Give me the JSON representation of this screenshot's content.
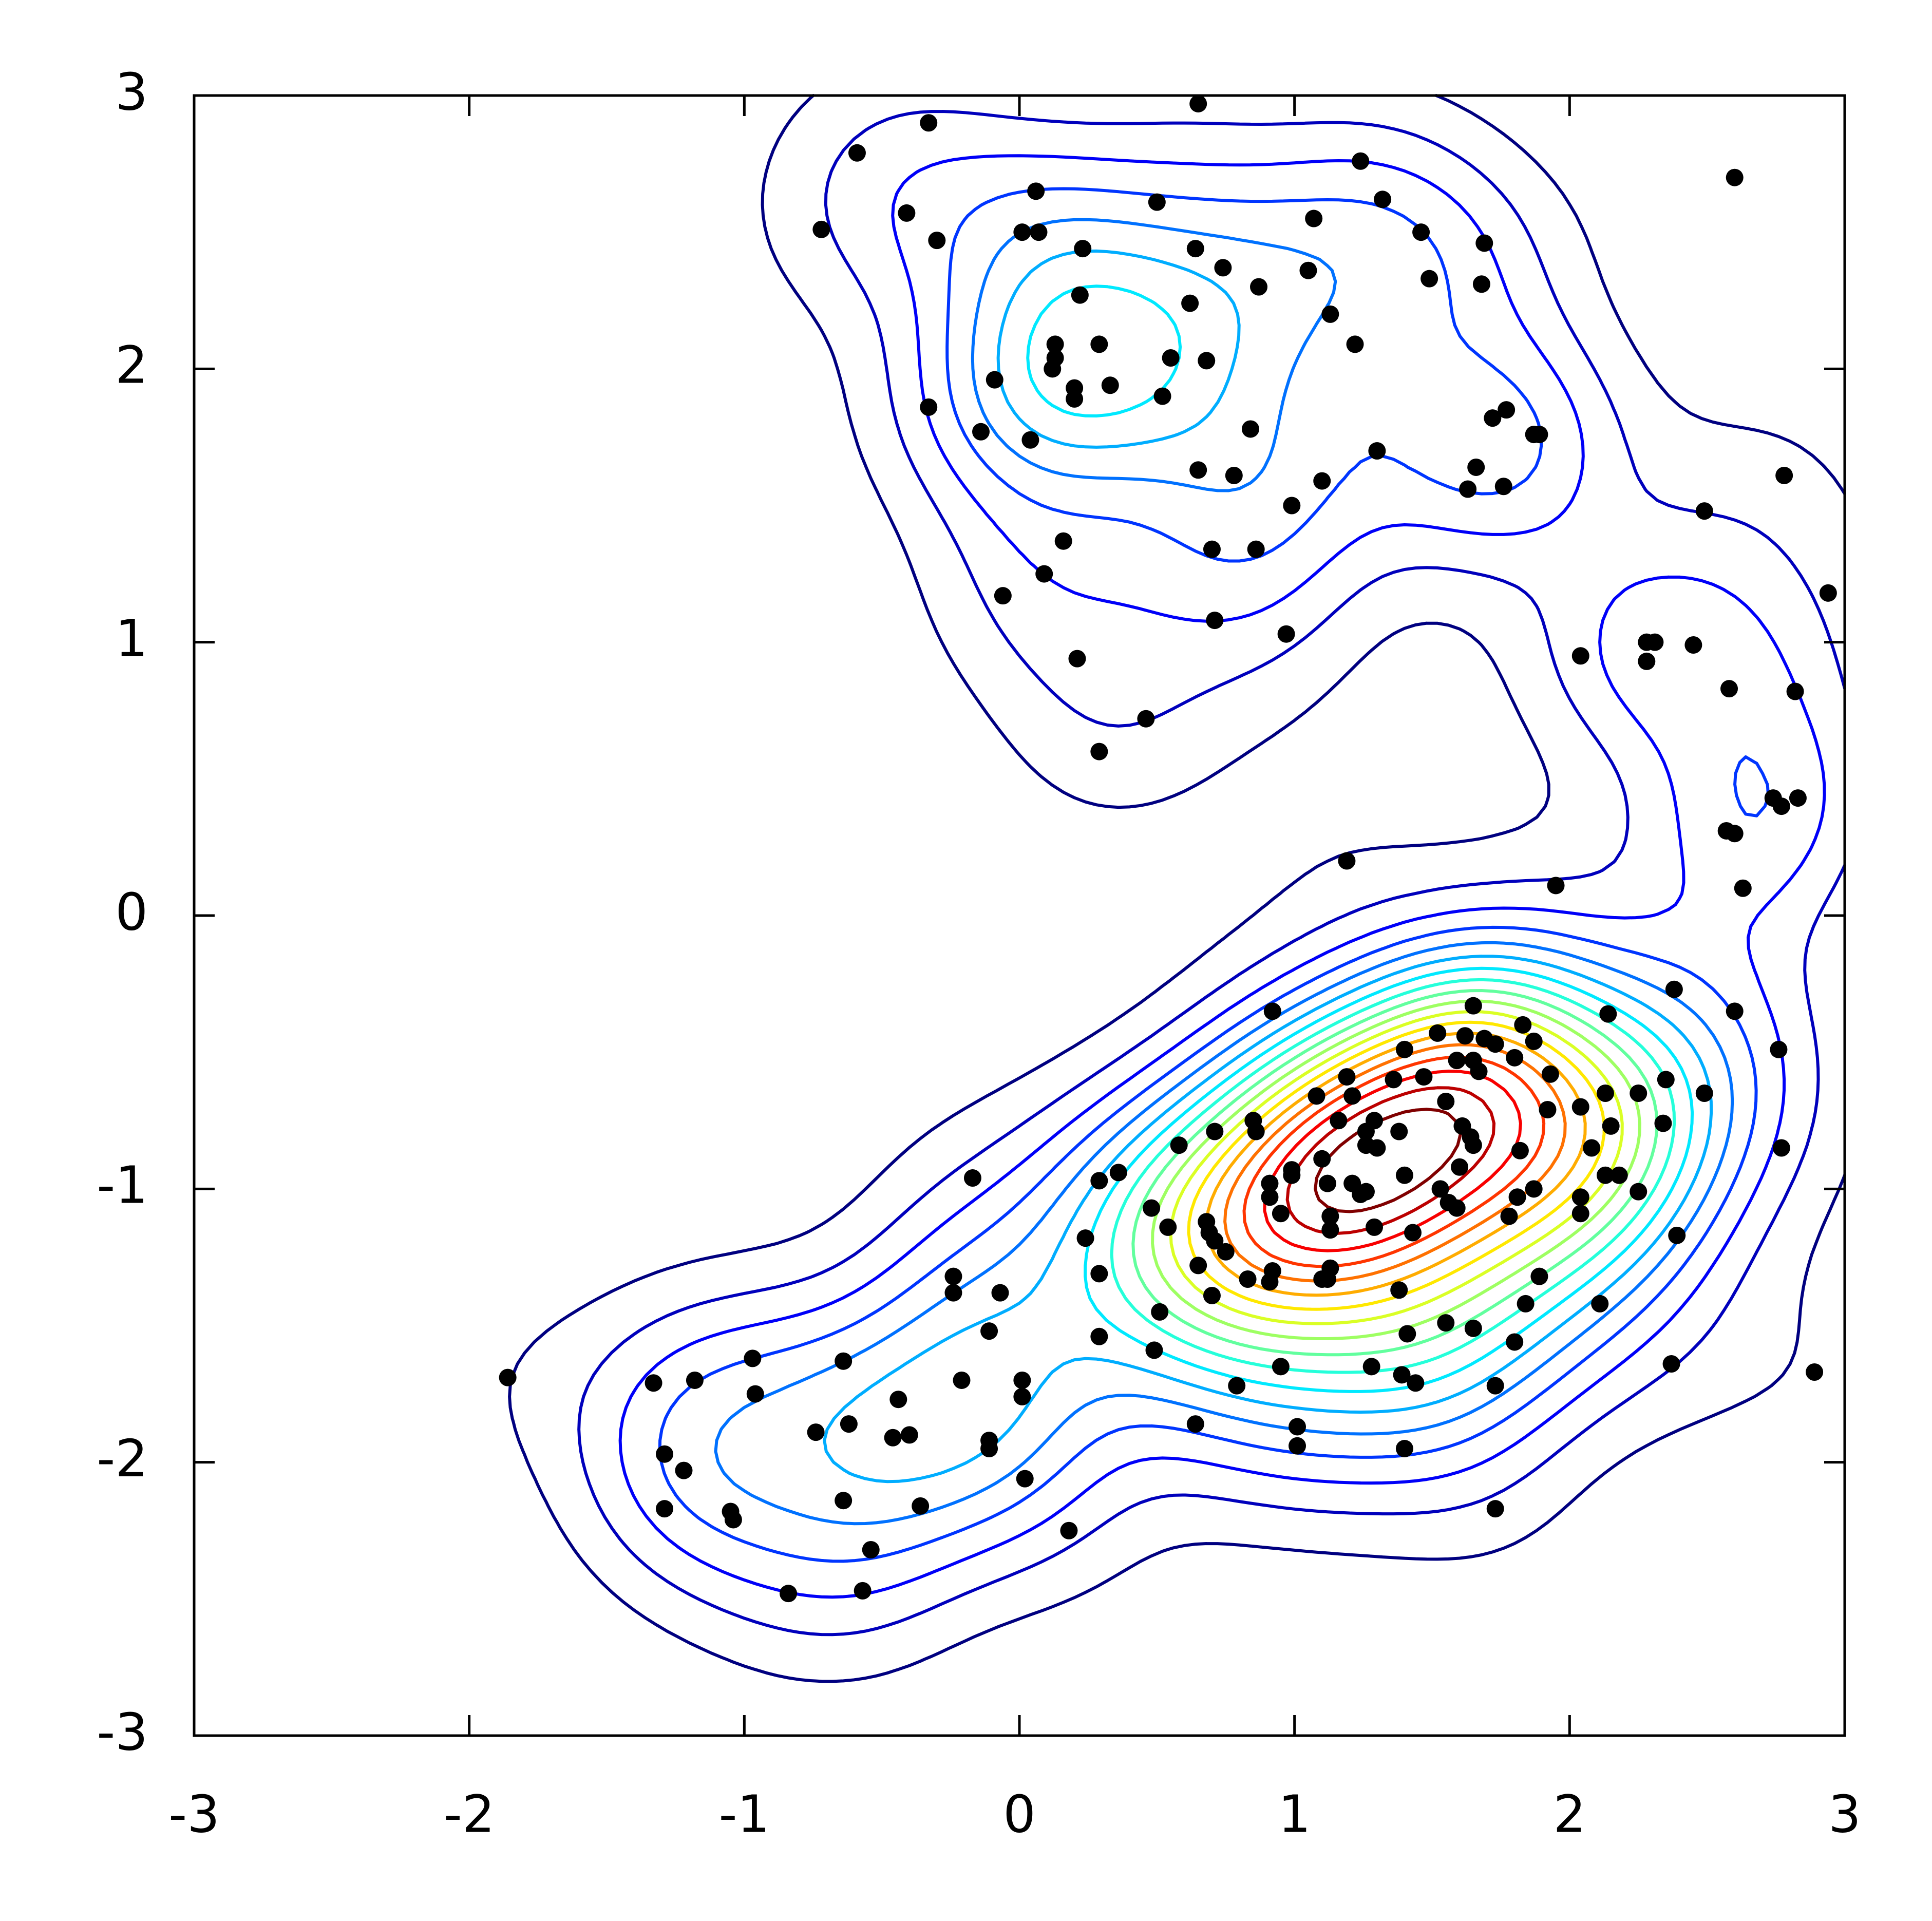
{
  "chart_data": {
    "type": "scatter",
    "contour": true,
    "colormap": "jet",
    "color": "#000000",
    "xlim": [
      -3,
      3
    ],
    "ylim": [
      -3,
      3
    ],
    "xticks": [
      -3,
      -2,
      -1,
      0,
      1,
      2,
      3
    ],
    "yticks": [
      -3,
      -2,
      -1,
      0,
      1,
      2,
      3
    ],
    "x": [
      -0.33,
      -0.59,
      0.65,
      -0.72,
      -0.41,
      -0.3,
      0.06,
      0.01,
      0.07,
      0.23,
      0.5,
      0.64,
      0.74,
      0.22,
      0.62,
      0.87,
      1.07,
      1.05,
      1.24,
      1.32,
      1.46,
      1.49,
      1.69,
      1.68,
      1.13,
      1.22,
      0.13,
      0.13,
      0.12,
      0.29,
      0.55,
      0.68,
      -0.09,
      0.2,
      0.2,
      0.33,
      0.52,
      -0.33,
      -0.14,
      0.04,
      0.84,
      1.3,
      0.65,
      0.78,
      1.1,
      0.99,
      1.72,
      1.77,
      1.87,
      1.89,
      1.66,
      1.63,
      1.76,
      0.16,
      0.7,
      0.86,
      0.09,
      -0.06,
      0.71,
      0.97,
      0.21,
      0.46,
      0.29,
      1.19,
      2.6,
      2.78,
      2.49,
      2.94,
      2.04,
      2.28,
      2.31,
      2.28,
      2.45,
      2.58,
      2.82,
      2.74,
      2.77,
      2.83,
      2.57,
      2.6,
      2.63,
      1.95,
      2.38,
      2.6,
      0.92,
      2.14,
      1.65,
      1.52,
      1.62,
      1.69,
      1.73,
      1.83,
      1.87,
      1.4,
      1.59,
      1.65,
      1.67,
      1.8,
      1.93,
      2.76,
      1.19,
      1.36,
      1.47,
      1.08,
      1.21,
      1.55,
      2.13,
      2.25,
      2.35,
      2.49,
      1.92,
      2.04,
      0.85,
      1.16,
      1.29,
      1.61,
      2.34,
      2.15,
      0.86,
      0.71,
      1.26,
      1.38,
      1.64,
      0.58,
      1.26,
      1.65,
      1.82,
      2.08,
      2.77,
      1.3,
      1.1,
      0.36,
      0.29,
      -0.17,
      0.99,
      0.99,
      1.6,
      1.4,
      0.91,
      1.21,
      2.13,
      2.18,
      0.91,
      1.12,
      1.24,
      1.26,
      1.53,
      1.87,
      2.25,
      1.56,
      1.81,
      2.04,
      2.04,
      1.59,
      0.95,
      1.29,
      0.68,
      1.13,
      1.78,
      0.48,
      1.13,
      1.43,
      0.54,
      0.69,
      0.71,
      2.39,
      0.24,
      0.75,
      0.65,
      1.13,
      1.12,
      0.92,
      0.83,
      0.91,
      0.29,
      1.1,
      1.89,
      -0.24,
      -0.24,
      -0.07,
      0.7,
      1.38,
      2.11,
      0.51,
      1.84,
      -0.11,
      1.41,
      1.55,
      1.65,
      0.29,
      1.8,
      0.49,
      0.95,
      1.28,
      1.39,
      1.44,
      2.37,
      1.73,
      0.79,
      2.89,
      -0.21,
      0.01,
      0.01,
      -1.86,
      -1.33,
      -1.18,
      -0.97,
      -0.64,
      -0.96,
      -0.44,
      0.64,
      1.01,
      1.01,
      1.4,
      -0.62,
      -0.74,
      -0.46,
      -0.4,
      -0.11,
      -0.11,
      -1.29,
      -1.22,
      0.02,
      -0.64,
      -0.36,
      -1.29,
      -1.05,
      -1.04,
      1.73,
      0.18,
      -0.54,
      -0.57,
      -0.84
    ],
    "values": [
      2.9,
      2.79,
      2.97,
      2.51,
      2.57,
      2.47,
      2.65,
      2.5,
      2.5,
      2.44,
      2.61,
      2.44,
      2.37,
      2.27,
      2.24,
      2.3,
      2.55,
      2.36,
      2.76,
      2.62,
      2.5,
      2.33,
      2.46,
      2.31,
      2.2,
      2.09,
      2.09,
      2.04,
      2.0,
      2.09,
      2.04,
      2.03,
      1.96,
      1.93,
      1.89,
      1.94,
      1.9,
      1.86,
      1.77,
      1.74,
      1.78,
      1.7,
      1.63,
      1.61,
      1.59,
      1.5,
      1.82,
      1.85,
      1.76,
      1.76,
      1.64,
      1.56,
      1.57,
      1.37,
      1.34,
      1.34,
      1.25,
      1.17,
      1.08,
      1.03,
      0.94,
      0.72,
      0.6,
      0.2,
      2.7,
      1.61,
      1.48,
      1.18,
      0.95,
      1.0,
      1.0,
      0.93,
      0.99,
      0.83,
      0.82,
      0.43,
      0.4,
      0.43,
      0.31,
      0.3,
      0.1,
      0.11,
      -0.27,
      -0.35,
      -0.35,
      -0.36,
      -0.33,
      -0.43,
      -0.44,
      -0.45,
      -0.47,
      -0.4,
      -0.46,
      -0.49,
      -0.53,
      -0.53,
      -0.57,
      -0.52,
      -0.58,
      -0.49,
      -0.59,
      -0.6,
      -0.59,
      -0.66,
      -0.66,
      -0.68,
      -0.65,
      -0.65,
      -0.6,
      -0.65,
      -0.71,
      -0.7,
      -0.75,
      -0.75,
      -0.75,
      -0.77,
      -0.76,
      -0.77,
      -0.79,
      -0.79,
      -0.79,
      -0.79,
      -0.81,
      -0.84,
      -0.84,
      -0.84,
      -0.86,
      -0.85,
      -0.85,
      -0.85,
      -0.89,
      -0.94,
      -0.97,
      -0.96,
      -0.93,
      -0.95,
      -0.92,
      -0.95,
      -0.98,
      -0.98,
      -0.95,
      -0.95,
      -1.03,
      -0.98,
      -1.02,
      -1.01,
      -1.0,
      -1.0,
      -1.01,
      -1.05,
      -1.03,
      -1.03,
      -1.09,
      -1.07,
      -1.09,
      -1.14,
      -1.12,
      -1.1,
      -1.1,
      -1.07,
      -1.15,
      -1.16,
      -1.14,
      -1.16,
      -1.19,
      -1.17,
      -1.18,
      -1.23,
      -1.28,
      -1.29,
      -1.33,
      -1.3,
      -1.33,
      -1.34,
      -1.31,
      -1.33,
      -1.32,
      -1.32,
      -1.38,
      -1.38,
      -1.39,
      -1.37,
      -1.42,
      -1.45,
      -1.42,
      -1.52,
      -1.53,
      -1.49,
      -1.51,
      -1.54,
      -1.56,
      -1.59,
      -1.65,
      -1.65,
      -1.68,
      -1.71,
      -1.64,
      -1.72,
      -1.72,
      -1.67,
      -1.7,
      -1.7,
      -1.76,
      -1.69,
      -1.71,
      -1.7,
      -1.62,
      -1.63,
      -1.75,
      -1.77,
      -1.86,
      -1.87,
      -1.94,
      -1.95,
      -1.86,
      -1.89,
      -1.91,
      -1.9,
      -1.92,
      -1.95,
      -1.97,
      -2.03,
      -2.06,
      -2.14,
      -2.16,
      -2.17,
      -2.18,
      -2.21,
      -2.17,
      -2.25,
      -2.32,
      -2.47,
      -2.48
    ]
  }
}
